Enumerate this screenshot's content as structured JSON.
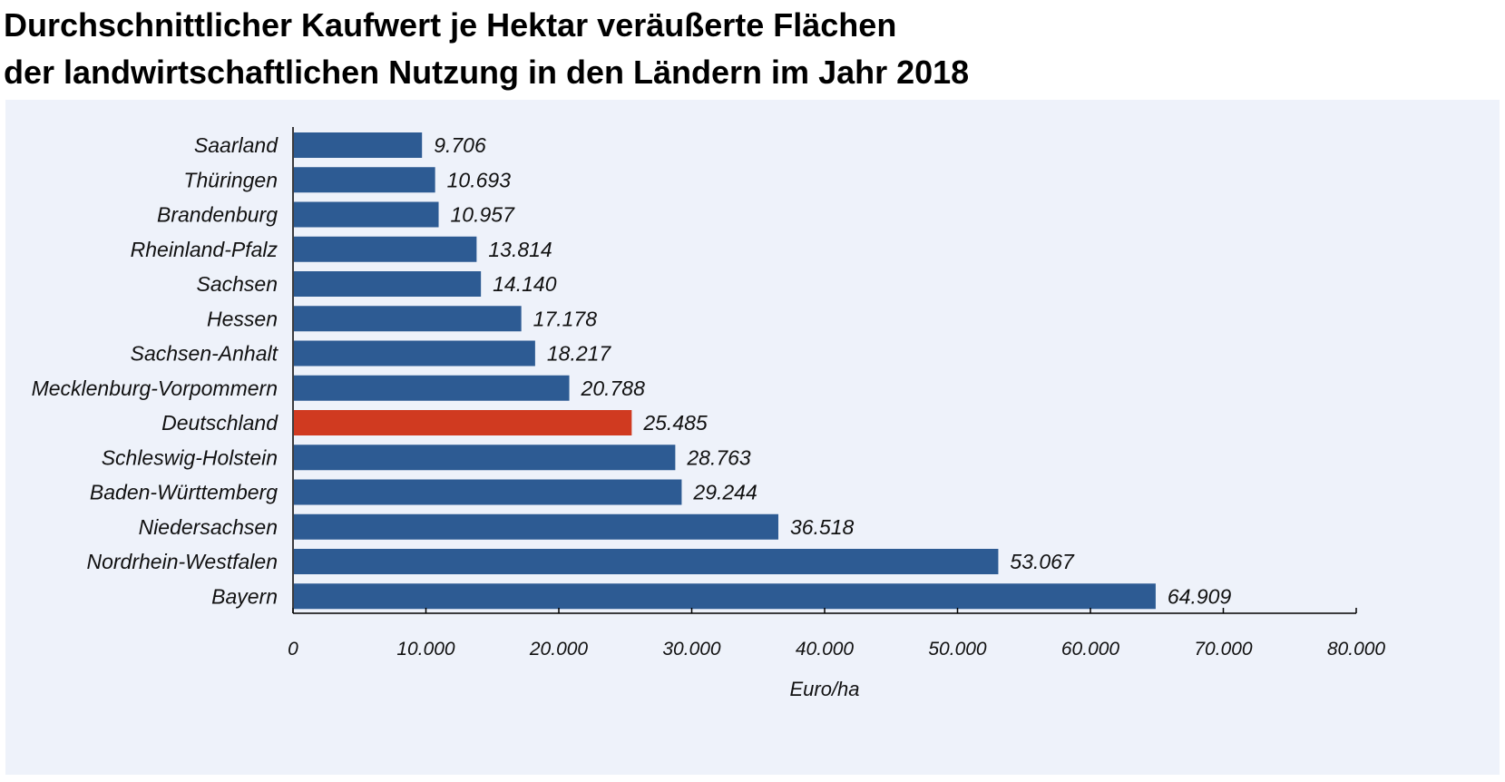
{
  "title": {
    "line1": "Durchschnittlicher Kaufwert je Hektar veräußerte Flächen",
    "line2": "der landwirtschaftlichen Nutzung in den Ländern im Jahr 2018"
  },
  "colors": {
    "bar": "#2d5b93",
    "highlight": "#d03a20",
    "background": "#eef2fa"
  },
  "chart_data": {
    "type": "bar",
    "orientation": "horizontal",
    "title": "Durchschnittlicher Kaufwert je Hektar veräußerte Flächen der landwirtschaftlichen Nutzung in den Ländern im Jahr 2018",
    "categories": [
      "Saarland",
      "Thüringen",
      "Brandenburg",
      "Rheinland-Pfalz",
      "Sachsen",
      "Hessen",
      "Sachsen-Anhalt",
      "Mecklenburg-Vorpommern",
      "Deutschland",
      "Schleswig-Holstein",
      "Baden-Württemberg",
      "Niedersachsen",
      "Nordrhein-Westfalen",
      "Bayern"
    ],
    "values": [
      9706,
      10693,
      10957,
      13814,
      14140,
      17178,
      18217,
      20788,
      25485,
      28763,
      29244,
      36518,
      53067,
      64909
    ],
    "value_labels": [
      "9.706",
      "10.693",
      "10.957",
      "13.814",
      "14.140",
      "17.178",
      "18.217",
      "20.788",
      "25.485",
      "28.763",
      "29.244",
      "36.518",
      "53.067",
      "64.909"
    ],
    "highlight_category": "Deutschland",
    "xlabel": "Euro/ha",
    "ylabel": "",
    "xlim": [
      0,
      80000
    ],
    "xticks": [
      0,
      10000,
      20000,
      30000,
      40000,
      50000,
      60000,
      70000,
      80000
    ],
    "xtick_labels": [
      "0",
      "10.000",
      "20.000",
      "30.000",
      "40.000",
      "50.000",
      "60.000",
      "70.000",
      "80.000"
    ],
    "grid": false,
    "legend": "none"
  }
}
